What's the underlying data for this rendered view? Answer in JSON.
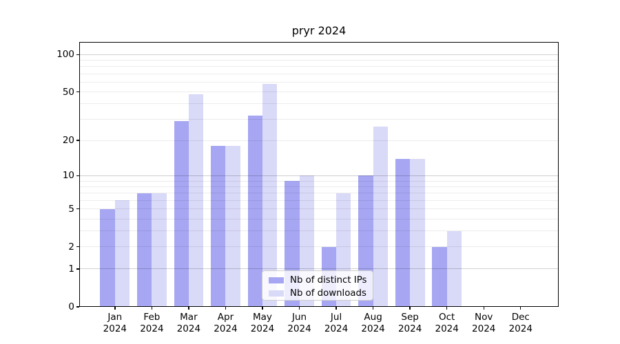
{
  "chart_data": {
    "type": "bar",
    "title": "pryr 2024",
    "categories": [
      "Jan\n2024",
      "Feb\n2024",
      "Mar\n2024",
      "Apr\n2024",
      "May\n2024",
      "Jun\n2024",
      "Jul\n2024",
      "Aug\n2024",
      "Sep\n2024",
      "Oct\n2024",
      "Nov\n2024",
      "Dec\n2024"
    ],
    "series": [
      {
        "name": "Nb of distinct IPs",
        "color": "#a6a6f2",
        "values": [
          5,
          7,
          29,
          18,
          32,
          9,
          2,
          10,
          14,
          2,
          0,
          0
        ]
      },
      {
        "name": "Nb of downloads",
        "color": "#d9d9f8",
        "values": [
          6,
          7,
          48,
          18,
          58,
          10,
          7,
          26,
          14,
          3,
          0,
          0
        ]
      }
    ],
    "xlabel": "",
    "ylabel": "",
    "yscale": "log1p",
    "ylim": [
      0,
      125
    ],
    "yticks": [
      100,
      50,
      20,
      10,
      5,
      2,
      1,
      0
    ],
    "gridlines_major": [
      1,
      10,
      100
    ],
    "gridlines_minor": [
      2,
      3,
      4,
      5,
      6,
      7,
      8,
      9,
      20,
      30,
      40,
      50,
      60,
      70,
      80,
      90
    ],
    "grid": true,
    "legend_position": "lower center",
    "axis_color": "#000000",
    "grid_minor_color": "#ececec",
    "grid_major_color": "#d0d0d0"
  }
}
